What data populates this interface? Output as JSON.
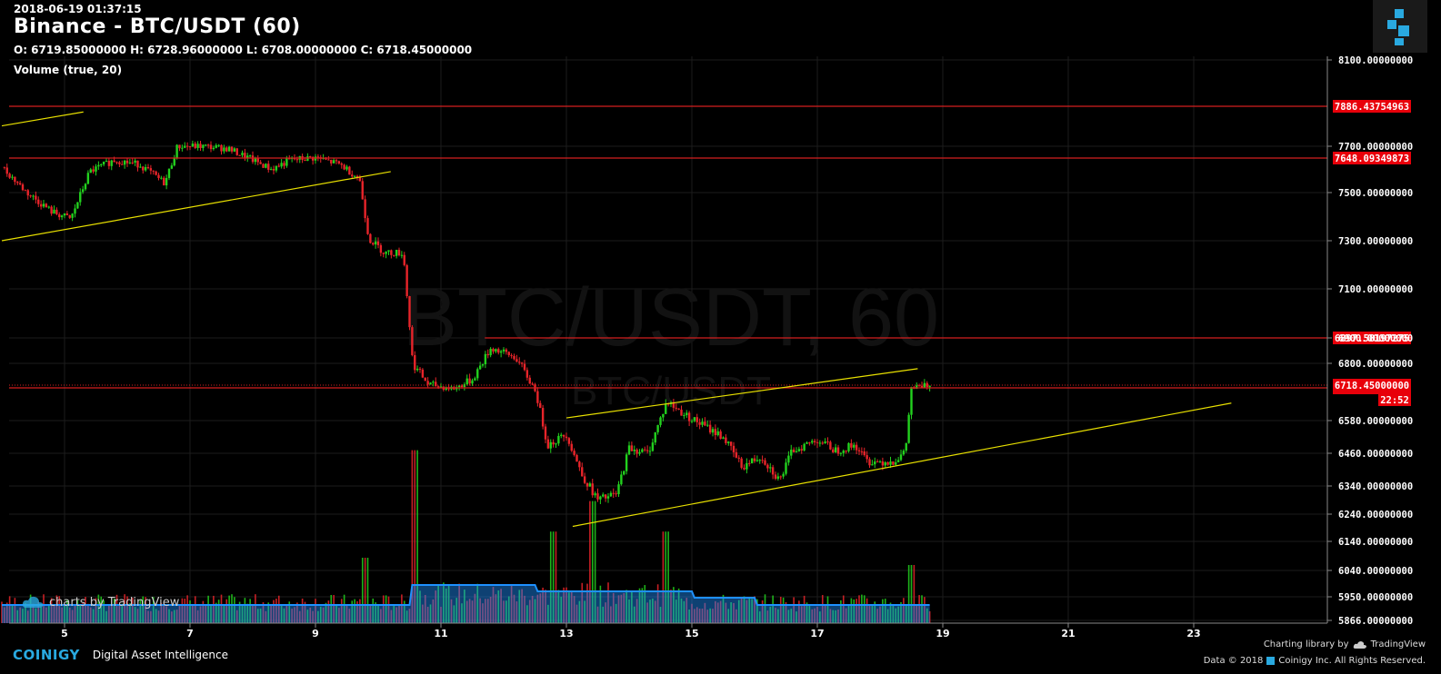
{
  "header": {
    "datetime": "2018-06-19 01:37:15",
    "title": "Binance - BTC/USDT (60)",
    "ohlc": "O: 6719.85000000 H: 6728.96000000 L: 6708.00000000 C: 6718.45000000",
    "volume_indicator": "Volume (true, 20)"
  },
  "watermark": {
    "main": "BTC/USDT, 60",
    "sub": "BTC/USDT"
  },
  "tradingview_badge": "charts by TradingView",
  "footer": {
    "brand": "COINIGY",
    "tagline": "Digital Asset Intelligence",
    "charting_library": "Charting library by",
    "tradingview": "TradingView",
    "copyright_prefix": "Data © 2018",
    "copyright_suffix": "Coinigy Inc. All Rights Reserved."
  },
  "colors": {
    "background": "#000000",
    "grid": "#1c1c1c",
    "up": "#22d11e",
    "down": "#e8242a",
    "trendline": "#e8e000",
    "hline": "#d41f1f",
    "volume_ma": "#1e90ff"
  },
  "chart_data": {
    "type": "candlestick",
    "symbol": "BTC/USDT",
    "interval": "60",
    "x_ticks": [
      "5",
      "7",
      "9",
      "11",
      "13",
      "15",
      "17",
      "19",
      "21",
      "23"
    ],
    "y_ticks": [
      "8100.00000000",
      "7700.00000000",
      "7500.00000000",
      "7300.00000000",
      "7100.00000000",
      "6900.00000000",
      "6800.00000000",
      "6580.00000000",
      "6460.00000000",
      "6340.00000000",
      "6240.00000000",
      "6140.00000000",
      "6040.00000000",
      "5950.00000000",
      "5866.00000000"
    ],
    "price_scale": [
      {
        "price": 8100,
        "label": "8100.00000000"
      },
      {
        "price": 7700,
        "label": "7700.00000000"
      },
      {
        "price": 7500,
        "label": "7500.00000000"
      },
      {
        "price": 7300,
        "label": "7300.00000000"
      },
      {
        "price": 7100,
        "label": "7100.00000000"
      },
      {
        "price": 6900,
        "label": "6900.00000000"
      },
      {
        "price": 6800,
        "label": "6800.00000000"
      },
      {
        "price": 6580,
        "label": "6580.00000000"
      },
      {
        "price": 6460,
        "label": "6460.00000000"
      },
      {
        "price": 6340,
        "label": "6340.00000000"
      },
      {
        "price": 6240,
        "label": "6240.00000000"
      },
      {
        "price": 6140,
        "label": "6140.00000000"
      },
      {
        "price": 6040,
        "label": "6040.00000000"
      },
      {
        "price": 5950,
        "label": "5950.00000000"
      },
      {
        "price": 5866,
        "label": "5866.00000000"
      }
    ],
    "horizontal_levels": [
      {
        "value": 7886.43754963,
        "label": "7886.43754963"
      },
      {
        "value": 7648.09349873,
        "label": "7648.09349873"
      },
      {
        "value": 6897.58197275,
        "label": "6897.58197275"
      },
      {
        "value": 6701.59397492,
        "label": "6701.59397492"
      }
    ],
    "last_price": {
      "value": 6718.45,
      "label": "6718.45000000",
      "countdown": "22:52"
    },
    "trend_lines": [
      {
        "from": [
          "4.0",
          7795
        ],
        "to": [
          "5.3",
          7860
        ]
      },
      {
        "from": [
          "4.0",
          7300
        ],
        "to": [
          "10.2",
          7590
        ]
      },
      {
        "from": [
          "13.0",
          6590
        ],
        "to": [
          "18.6",
          6780
        ]
      },
      {
        "from": [
          "13.1",
          6195
        ],
        "to": [
          "23.6",
          6645
        ]
      },
      {
        "from": [
          "11.7",
          6898
        ],
        "to": [
          "22.3",
          6898
        ]
      }
    ],
    "price_path": [
      {
        "day": 4.0,
        "close": 7610
      },
      {
        "day": 4.4,
        "close": 7500
      },
      {
        "day": 4.8,
        "close": 7420
      },
      {
        "day": 5.1,
        "close": 7390
      },
      {
        "day": 5.4,
        "close": 7590
      },
      {
        "day": 5.8,
        "close": 7640
      },
      {
        "day": 6.2,
        "close": 7620
      },
      {
        "day": 6.6,
        "close": 7540
      },
      {
        "day": 6.8,
        "close": 7700
      },
      {
        "day": 7.2,
        "close": 7700
      },
      {
        "day": 7.6,
        "close": 7690
      },
      {
        "day": 8.0,
        "close": 7640
      },
      {
        "day": 8.3,
        "close": 7600
      },
      {
        "day": 8.6,
        "close": 7640
      },
      {
        "day": 9.0,
        "close": 7650
      },
      {
        "day": 9.4,
        "close": 7620
      },
      {
        "day": 9.7,
        "close": 7560
      },
      {
        "day": 9.85,
        "close": 7310
      },
      {
        "day": 10.1,
        "close": 7250
      },
      {
        "day": 10.4,
        "close": 7250
      },
      {
        "day": 10.55,
        "close": 6800
      },
      {
        "day": 10.8,
        "close": 6720
      },
      {
        "day": 11.2,
        "close": 6700
      },
      {
        "day": 11.5,
        "close": 6740
      },
      {
        "day": 11.8,
        "close": 6860
      },
      {
        "day": 12.2,
        "close": 6820
      },
      {
        "day": 12.5,
        "close": 6700
      },
      {
        "day": 12.7,
        "close": 6490
      },
      {
        "day": 13.0,
        "close": 6530
      },
      {
        "day": 13.25,
        "close": 6380
      },
      {
        "day": 13.5,
        "close": 6290
      },
      {
        "day": 13.8,
        "close": 6310
      },
      {
        "day": 14.0,
        "close": 6480
      },
      {
        "day": 14.3,
        "close": 6460
      },
      {
        "day": 14.6,
        "close": 6650
      },
      {
        "day": 14.9,
        "close": 6600
      },
      {
        "day": 15.2,
        "close": 6560
      },
      {
        "day": 15.5,
        "close": 6520
      },
      {
        "day": 15.8,
        "close": 6410
      },
      {
        "day": 16.1,
        "close": 6450
      },
      {
        "day": 16.4,
        "close": 6360
      },
      {
        "day": 16.6,
        "close": 6470
      },
      {
        "day": 17.0,
        "close": 6510
      },
      {
        "day": 17.3,
        "close": 6470
      },
      {
        "day": 17.6,
        "close": 6490
      },
      {
        "day": 17.8,
        "close": 6430
      },
      {
        "day": 18.2,
        "close": 6430
      },
      {
        "day": 18.4,
        "close": 6460
      },
      {
        "day": 18.5,
        "close": 6700
      },
      {
        "day": 18.8,
        "close": 6718
      }
    ],
    "volume_spikes": [
      {
        "day": 10.6,
        "value": 0.85
      },
      {
        "day": 13.4,
        "value": 0.6
      },
      {
        "day": 9.8,
        "value": 0.45
      },
      {
        "day": 12.8,
        "value": 0.45
      },
      {
        "day": 18.5,
        "value": 0.4
      },
      {
        "day": 14.6,
        "value": 0.45
      }
    ]
  }
}
